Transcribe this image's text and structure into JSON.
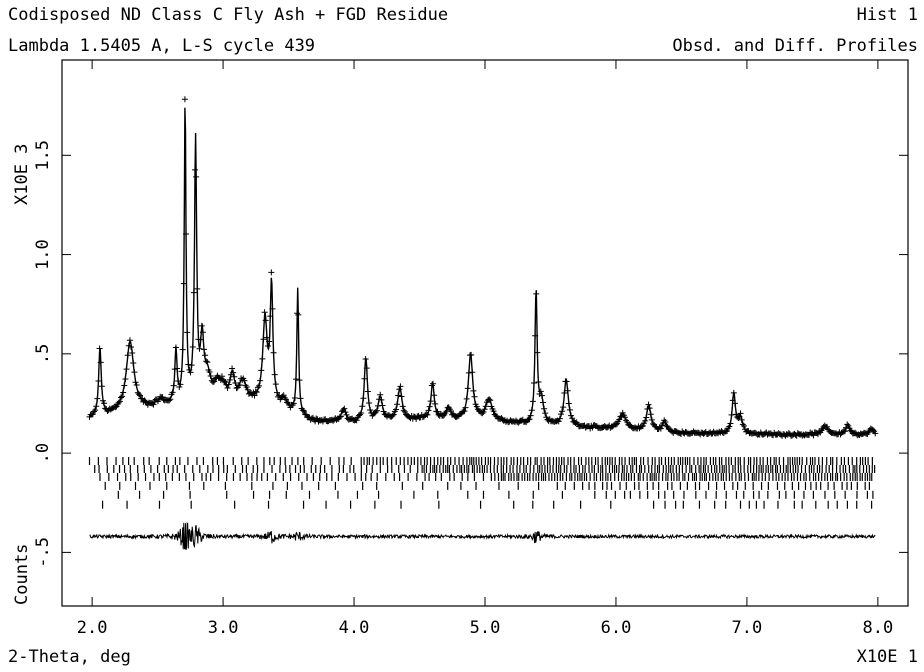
{
  "chart_data": {
    "type": "line",
    "header": {
      "title_left": "Codisposed ND Class C Fly Ash + FGD Residue",
      "title_right": "Hist   1",
      "subtitle_left": "Lambda 1.5405 A, L-S cycle  439",
      "subtitle_right": "Obsd. and Diff. Profiles"
    },
    "xlabel": "2-Theta, deg",
    "x_multiplier": "X10E  1",
    "ylabel": "Counts",
    "y_multiplier": "X10E  3",
    "xlim": [
      1.77,
      8.23
    ],
    "ylim": [
      -0.77,
      1.98
    ],
    "x_ticks": [
      {
        "value": 2.0,
        "label": "2.0"
      },
      {
        "value": 3.0,
        "label": "3.0"
      },
      {
        "value": 4.0,
        "label": "4.0"
      },
      {
        "value": 5.0,
        "label": "5.0"
      },
      {
        "value": 6.0,
        "label": "6.0"
      },
      {
        "value": 7.0,
        "label": "7.0"
      },
      {
        "value": 8.0,
        "label": "8.0"
      }
    ],
    "y_ticks": [
      {
        "value": -0.5,
        "label": "-.5"
      },
      {
        "value": 0.0,
        "label": ".0"
      },
      {
        "value": 0.5,
        "label": ".5"
      },
      {
        "value": 1.0,
        "label": "1.0"
      },
      {
        "value": 1.5,
        "label": "1.5"
      }
    ],
    "x_range": [
      1.98,
      7.98
    ],
    "background": [
      [
        1.98,
        0.17
      ],
      [
        2.2,
        0.2
      ],
      [
        2.6,
        0.24
      ],
      [
        3.0,
        0.27
      ],
      [
        3.4,
        0.24
      ],
      [
        3.7,
        0.16
      ],
      [
        4.0,
        0.15
      ],
      [
        4.5,
        0.17
      ],
      [
        5.0,
        0.16
      ],
      [
        5.5,
        0.14
      ],
      [
        6.0,
        0.12
      ],
      [
        6.5,
        0.1
      ],
      [
        7.0,
        0.095
      ],
      [
        7.98,
        0.09
      ]
    ],
    "peaks": [
      {
        "x": 2.06,
        "height": 0.34,
        "width": 0.012
      },
      {
        "x": 2.29,
        "height": 0.35,
        "width": 0.035
      },
      {
        "x": 2.52,
        "height": 0.03,
        "width": 0.03
      },
      {
        "x": 2.64,
        "height": 0.26,
        "width": 0.01
      },
      {
        "x": 2.71,
        "height": 1.5,
        "width": 0.008
      },
      {
        "x": 2.79,
        "height": 1.3,
        "width": 0.01
      },
      {
        "x": 2.84,
        "height": 0.28,
        "width": 0.015
      },
      {
        "x": 2.88,
        "height": 0.12,
        "width": 0.03
      },
      {
        "x": 2.96,
        "height": 0.07,
        "width": 0.03
      },
      {
        "x": 3.0,
        "height": 0.05,
        "width": 0.02
      },
      {
        "x": 3.07,
        "height": 0.12,
        "width": 0.02
      },
      {
        "x": 3.15,
        "height": 0.1,
        "width": 0.03
      },
      {
        "x": 3.32,
        "height": 0.42,
        "width": 0.02
      },
      {
        "x": 3.37,
        "height": 0.58,
        "width": 0.012
      },
      {
        "x": 3.47,
        "height": 0.04,
        "width": 0.02
      },
      {
        "x": 3.57,
        "height": 0.63,
        "width": 0.008
      },
      {
        "x": 3.92,
        "height": 0.07,
        "width": 0.02
      },
      {
        "x": 4.09,
        "height": 0.32,
        "width": 0.015
      },
      {
        "x": 4.2,
        "height": 0.12,
        "width": 0.02
      },
      {
        "x": 4.35,
        "height": 0.16,
        "width": 0.02
      },
      {
        "x": 4.6,
        "height": 0.18,
        "width": 0.015
      },
      {
        "x": 4.72,
        "height": 0.06,
        "width": 0.02
      },
      {
        "x": 4.89,
        "height": 0.33,
        "width": 0.02
      },
      {
        "x": 5.03,
        "height": 0.11,
        "width": 0.03
      },
      {
        "x": 5.39,
        "height": 0.66,
        "width": 0.01
      },
      {
        "x": 5.43,
        "height": 0.12,
        "width": 0.02
      },
      {
        "x": 5.62,
        "height": 0.23,
        "width": 0.02
      },
      {
        "x": 6.05,
        "height": 0.08,
        "width": 0.03
      },
      {
        "x": 6.25,
        "height": 0.13,
        "width": 0.02
      },
      {
        "x": 6.37,
        "height": 0.05,
        "width": 0.02
      },
      {
        "x": 6.9,
        "height": 0.2,
        "width": 0.015
      },
      {
        "x": 6.95,
        "height": 0.08,
        "width": 0.02
      },
      {
        "x": 7.6,
        "height": 0.04,
        "width": 0.03
      },
      {
        "x": 7.77,
        "height": 0.05,
        "width": 0.02
      },
      {
        "x": 7.95,
        "height": 0.03,
        "width": 0.02
      }
    ],
    "reflection_rows": [
      {
        "y": -0.04,
        "start": 1.98,
        "spacing": 0.055,
        "dense_from": 4.0,
        "dense_spacing": 0.025
      },
      {
        "y": -0.08,
        "start": 2.02,
        "spacing": 0.045,
        "dense_from": 4.5,
        "dense_spacing": 0.022
      },
      {
        "y": -0.12,
        "start": 2.06,
        "spacing": 0.05,
        "dense_from": 5.0,
        "dense_spacing": 0.022
      },
      {
        "y": -0.165,
        "start": 2.1,
        "spacing": 0.16,
        "dense_from": 5.5,
        "dense_spacing": 0.05
      },
      {
        "y": -0.21,
        "start": 2.2,
        "spacing": 0.2,
        "dense_from": 5.8,
        "dense_spacing": 0.065
      },
      {
        "y": -0.26,
        "start": 2.08,
        "spacing": 0.24,
        "dense_from": 6.2,
        "dense_spacing": 0.09
      }
    ],
    "difference_offset": -0.42,
    "difference_noise": [
      {
        "x": 2.71,
        "amplitude": 0.07
      },
      {
        "x": 2.79,
        "amplitude": 0.05
      },
      {
        "x": 3.37,
        "amplitude": 0.03
      },
      {
        "x": 3.57,
        "amplitude": 0.02
      },
      {
        "x": 5.39,
        "amplitude": 0.03
      }
    ]
  }
}
